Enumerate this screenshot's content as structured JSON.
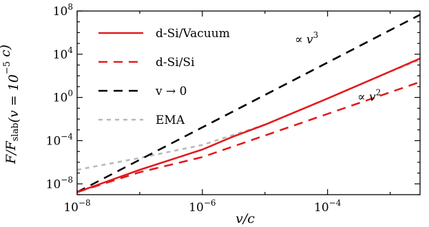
{
  "chart_data": {
    "type": "line",
    "xscale": "log",
    "yscale": "log",
    "xlim": [
      1e-08,
      0.003
    ],
    "ylim": [
      1e-09,
      100000000.0
    ],
    "xlabel": "v/c",
    "ylabel": "F/F_slab(v = 10^-5 c)",
    "x_ticks": [
      {
        "value": 1e-08,
        "base": "10",
        "exp": "−8"
      },
      {
        "value": 1e-06,
        "base": "10",
        "exp": "−6"
      },
      {
        "value": 0.0001,
        "base": "10",
        "exp": "−4"
      }
    ],
    "y_ticks": [
      {
        "value": 1e-08,
        "base": "10",
        "exp": "−8"
      },
      {
        "value": 0.0001,
        "base": "10",
        "exp": "−4"
      },
      {
        "value": 1,
        "base": "10",
        "exp": "0"
      },
      {
        "value": 10000.0,
        "base": "10",
        "exp": "4"
      },
      {
        "value": 100000000.0,
        "base": "10",
        "exp": "8"
      }
    ],
    "series": [
      {
        "name": "d-Si/Vacuum",
        "color": "#e41a1c",
        "dash": "solid",
        "x": [
          1e-08,
          1e-07,
          1e-06,
          3e-06,
          1e-05,
          0.0001,
          0.001,
          0.003
        ],
        "y": [
          1.7e-09,
          2e-07,
          1.5e-05,
          0.00022,
          0.003,
          0.8,
          250,
          4000
        ]
      },
      {
        "name": "d-Si/Si",
        "color": "#e41a1c",
        "dash": "dashed",
        "x": [
          1e-08,
          1e-07,
          1e-06,
          1e-05,
          0.0001,
          0.001,
          0.003
        ],
        "y": [
          1.7e-09,
          1.2e-07,
          3e-06,
          0.0003,
          0.03,
          3,
          27
        ]
      },
      {
        "name": "v → 0",
        "color": "#000000",
        "dash": "dashed",
        "x": [
          1e-08,
          1e-07,
          1e-06,
          1e-05,
          0.0001,
          0.001,
          0.003
        ],
        "y": [
          1.7e-09,
          1.7e-06,
          0.0017,
          1.7,
          1700,
          1700000.0,
          45000000.0
        ]
      },
      {
        "name": "EMA",
        "color": "#b8b8b8",
        "dash": "dotted",
        "x": [
          1e-08,
          1e-07,
          1e-06,
          1e-05,
          0.0001,
          0.001,
          0.003
        ],
        "y": [
          2e-07,
          2.5e-06,
          4e-05,
          0.003,
          0.8,
          250,
          3000
        ]
      }
    ],
    "legend": {
      "placement": "top-left",
      "entries": [
        {
          "label": "d-Si/Vacuum",
          "color": "#e41a1c",
          "dash": "solid"
        },
        {
          "label": "d-Si/Si",
          "color": "#e41a1c",
          "dash": "dashed"
        },
        {
          "label": "v → 0",
          "color": "#000000",
          "dash": "dashed"
        },
        {
          "label": "EMA",
          "color": "#b8b8b8",
          "dash": "dotted"
        }
      ]
    },
    "annotations": [
      {
        "text": "∝ v",
        "sup": "3",
        "x": 3e-05,
        "y": 100000.0
      },
      {
        "text": "∝ v",
        "sup": "2",
        "x": 0.0003,
        "y": 0.5
      }
    ]
  }
}
